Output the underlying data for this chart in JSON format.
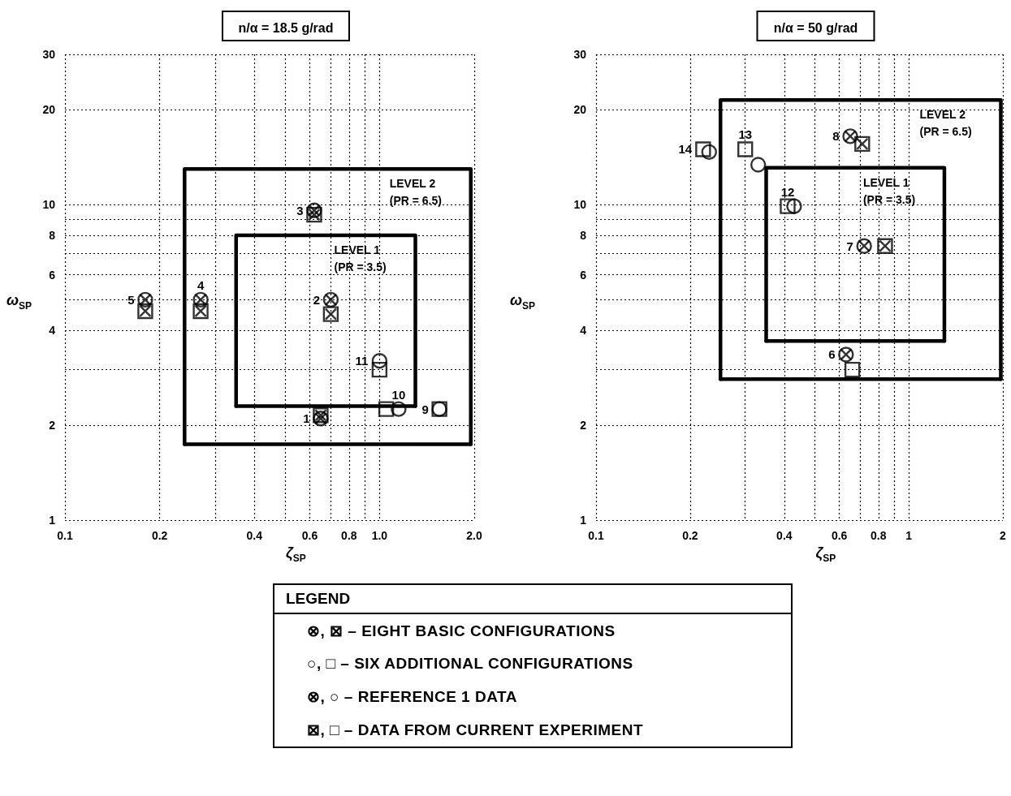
{
  "chart_data": [
    {
      "type": "scatter",
      "title": "n/α = 18.5 g/rad",
      "xlabel": "ζ$_{SP}$",
      "ylabel": "ω$_{SP}$",
      "log": "xy",
      "xlim": [
        0.1,
        2.0
      ],
      "xticks": [
        0.1,
        0.2,
        {
          "value": 0.3,
          "label": null
        },
        0.4,
        {
          "value": 0.5,
          "label": null
        },
        0.6,
        {
          "value": 0.7,
          "label": null
        },
        0.8,
        {
          "value": 0.9,
          "label": null
        },
        {
          "value": 1,
          "label": "1.0"
        },
        {
          "value": 2,
          "label": "2.0"
        }
      ],
      "ylim": [
        1,
        30
      ],
      "yticks": [
        1,
        2,
        {
          "value": 3,
          "label": null
        },
        4,
        {
          "value": 5,
          "label": null
        },
        6,
        {
          "value": 7,
          "label": null
        },
        8,
        {
          "value": 9,
          "label": null
        },
        10,
        20,
        30
      ],
      "grid": true,
      "series": [
        {
          "type": "scatter",
          "marker": "circle",
          "color": "#000000",
          "x": [
            0.65,
            0.7,
            0.62,
            0.27,
            0.18
          ],
          "values": [
            2.1,
            5.0,
            9.6,
            5.0,
            5.0
          ]
        },
        {
          "type": "scatter",
          "marker": "cross",
          "color": "#000000",
          "x": [
            0.65,
            0.7,
            0.62,
            0.27,
            0.18
          ],
          "values": [
            2.1,
            5.0,
            9.6,
            5.0,
            5.0
          ]
        },
        {
          "type": "scatter",
          "marker": "square",
          "color": "#000000",
          "x": [
            0.65,
            0.7,
            0.62,
            0.27,
            0.18
          ],
          "values": [
            2.15,
            4.5,
            9.3,
            4.6,
            4.6
          ]
        },
        {
          "type": "scatter",
          "marker": "cross",
          "color": "#000000",
          "x": [
            0.65,
            0.7,
            0.62,
            0.27,
            0.18
          ],
          "values": [
            2.15,
            4.5,
            9.3,
            4.6,
            4.6
          ]
        },
        {
          "type": "scatter",
          "marker": "circle",
          "color": "#000000",
          "x": [
            1.55,
            1.15,
            1.0
          ],
          "values": [
            2.25,
            2.25,
            3.2
          ]
        },
        {
          "type": "scatter",
          "marker": "square",
          "color": "#000000",
          "x": [
            1.55,
            1.05,
            1.0
          ],
          "values": [
            2.25,
            2.25,
            3.0
          ]
        },
        {
          "type": "line",
          "name": "LEVEL 2 (PR = 6.5)",
          "line_style": "solid",
          "color": "#000000",
          "x": [
            0.24,
            0.24,
            1.95,
            1.95
          ],
          "values": [
            1.74,
            13,
            13,
            1.74
          ]
        },
        {
          "type": "line",
          "line_style": "solid",
          "color": "#000000",
          "x": [
            0.24,
            1.95
          ],
          "values": [
            1.74,
            1.74
          ]
        },
        {
          "type": "line",
          "name": "LEVEL 1 (PR = 3.5)",
          "line_style": "solid",
          "color": "#000000",
          "x": [
            0.35,
            0.35,
            1.3,
            1.3
          ],
          "values": [
            2.3,
            8.0,
            8.0,
            2.3
          ]
        },
        {
          "type": "line",
          "line_style": "solid",
          "color": "#000000",
          "x": [
            0.35,
            1.3
          ],
          "values": [
            2.3,
            2.3
          ]
        }
      ],
      "annotations": [
        {
          "text": "1",
          "x": 0.65,
          "y": 2.1
        },
        {
          "text": "2",
          "x": 0.7,
          "y": 5.0
        },
        {
          "text": "3",
          "x": 0.62,
          "y": 9.6
        },
        {
          "text": "4",
          "x": 0.27,
          "y": 5.0
        },
        {
          "text": "5",
          "x": 0.18,
          "y": 5.0
        },
        {
          "text": "9",
          "x": 1.55,
          "y": 2.25
        },
        {
          "text": "10",
          "x": 1.15,
          "y": 2.25
        },
        {
          "text": "11",
          "x": 1.0,
          "y": 3.2
        }
      ]
    },
    {
      "type": "scatter",
      "title": "n/α = 50 g/rad",
      "xlabel": "ζ$_{SP}$",
      "ylabel": "ω$_{SP}$",
      "log": "xy",
      "xlim": [
        0.1,
        2
      ],
      "xticks": [
        0.1,
        0.2,
        {
          "value": 0.3,
          "label": null
        },
        0.4,
        {
          "value": 0.5,
          "label": null
        },
        0.6,
        {
          "value": 0.7,
          "label": null
        },
        0.8,
        {
          "value": 0.9,
          "label": null
        },
        1,
        2
      ],
      "ylim": [
        1,
        30
      ],
      "yticks": [
        1,
        2,
        {
          "value": 3,
          "label": null
        },
        4,
        {
          "value": 5,
          "label": null
        },
        6,
        {
          "value": 7,
          "label": null
        },
        8,
        {
          "value": 9,
          "label": null
        },
        10,
        20,
        30
      ],
      "grid": true,
      "series": [
        {
          "type": "scatter",
          "marker": "circle",
          "color": "#000000",
          "x": [
            0.63,
            0.72,
            0.65
          ],
          "values": [
            3.35,
            7.4,
            16.5
          ]
        },
        {
          "type": "scatter",
          "marker": "cross",
          "color": "#000000",
          "x": [
            0.63,
            0.72,
            0.65
          ],
          "values": [
            3.35,
            7.4,
            16.5
          ]
        },
        {
          "type": "scatter",
          "marker": "square",
          "color": "#000000",
          "x": [
            0.84,
            0.71
          ],
          "values": [
            7.4,
            15.6
          ]
        },
        {
          "type": "scatter",
          "marker": "cross",
          "color": "#000000",
          "x": [
            0.84,
            0.71
          ],
          "values": [
            7.4,
            15.6
          ]
        },
        {
          "type": "scatter",
          "marker": "circle",
          "color": "#000000",
          "x": [
            0.43,
            0.33,
            0.23
          ],
          "values": [
            9.9,
            13.4,
            14.7
          ]
        },
        {
          "type": "scatter",
          "marker": "square",
          "color": "#000000",
          "x": [
            0.66,
            0.41,
            0.3,
            0.22
          ],
          "values": [
            3.0,
            9.9,
            15.0,
            15.0
          ]
        },
        {
          "type": "line",
          "name": "LEVEL 2 (PR = 6.5)",
          "line_style": "solid",
          "color": "#000000",
          "x": [
            0.25,
            0.25,
            1.97,
            1.97
          ],
          "values": [
            2.8,
            21.5,
            21.5,
            2.8
          ]
        },
        {
          "type": "line",
          "line_style": "solid",
          "color": "#000000",
          "x": [
            0.25,
            1.97
          ],
          "values": [
            2.8,
            2.8
          ]
        },
        {
          "type": "line",
          "name": "LEVEL 1 (PR = 3.5)",
          "line_style": "solid",
          "color": "#000000",
          "x": [
            0.35,
            0.35,
            1.3,
            1.3
          ],
          "values": [
            3.7,
            13.1,
            13.1,
            3.7
          ]
        },
        {
          "type": "line",
          "line_style": "solid",
          "color": "#000000",
          "x": [
            0.35,
            1.3
          ],
          "values": [
            3.7,
            3.7
          ]
        }
      ],
      "annotations": [
        {
          "text": "6",
          "x": 0.63,
          "y": 3.35
        },
        {
          "text": "7",
          "x": 0.72,
          "y": 7.4
        },
        {
          "text": "8",
          "x": 0.65,
          "y": 16.5
        },
        {
          "text": "12",
          "x": 0.41,
          "y": 9.9
        },
        {
          "text": "13",
          "x": 0.3,
          "y": 15.0
        },
        {
          "text": "14",
          "x": 0.22,
          "y": 15.0
        }
      ]
    },
    {
      "type": "other",
      "title": "LEGEND",
      "annotations": [
        "⊗, ⊠ – EIGHT BASIC CONFIGURATIONS",
        "○, □ – SIX ADDITIONAL CONFIGURATIONS",
        "⊗, ○ – REFERENCE 1 DATA",
        "⊠, □ – DATA FROM CURRENT EXPERIMENT"
      ]
    }
  ]
}
